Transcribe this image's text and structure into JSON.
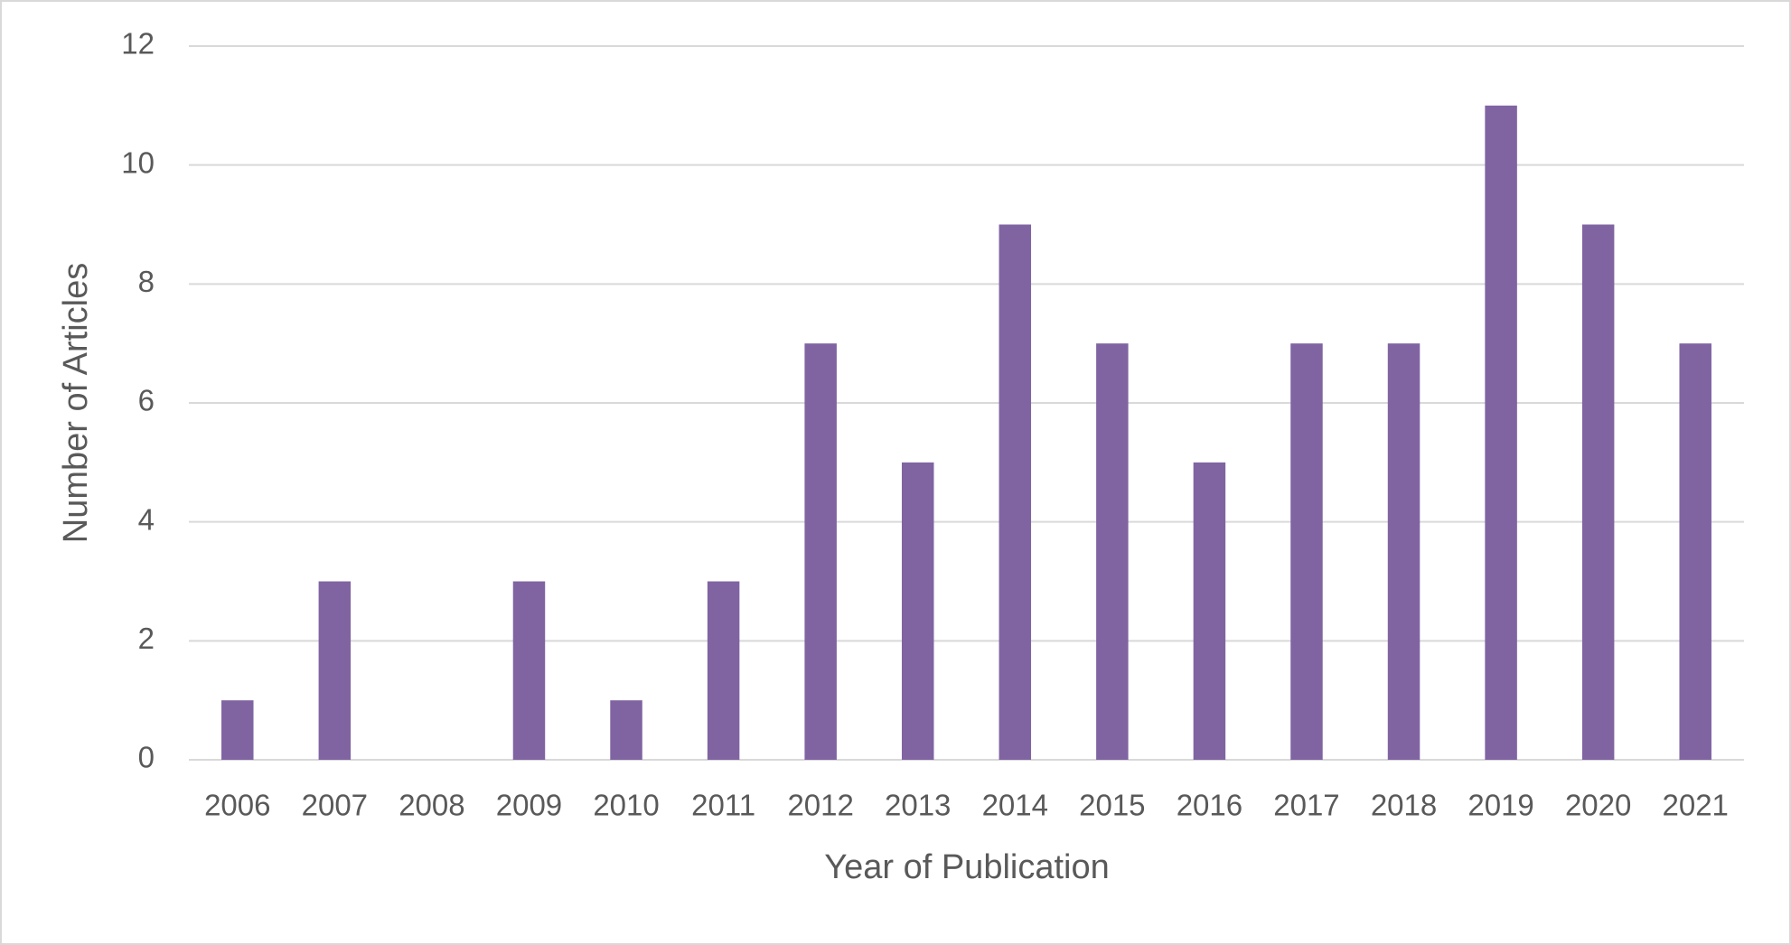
{
  "chart_data": {
    "type": "bar",
    "x_label": "Year of Publication",
    "y_label": "Number of Articles",
    "categories": [
      "2006",
      "2007",
      "2008",
      "2009",
      "2010",
      "2011",
      "2012",
      "2013",
      "2014",
      "2015",
      "2016",
      "2017",
      "2018",
      "2019",
      "2020",
      "2021"
    ],
    "values": [
      1,
      3,
      0,
      3,
      1,
      3,
      7,
      5,
      9,
      7,
      5,
      7,
      7,
      11,
      9,
      7
    ],
    "color": "#8064a2",
    "ylim": [
      0,
      12
    ],
    "yticks": [
      0,
      2,
      4,
      6,
      8,
      10,
      12
    ],
    "grid": true
  }
}
